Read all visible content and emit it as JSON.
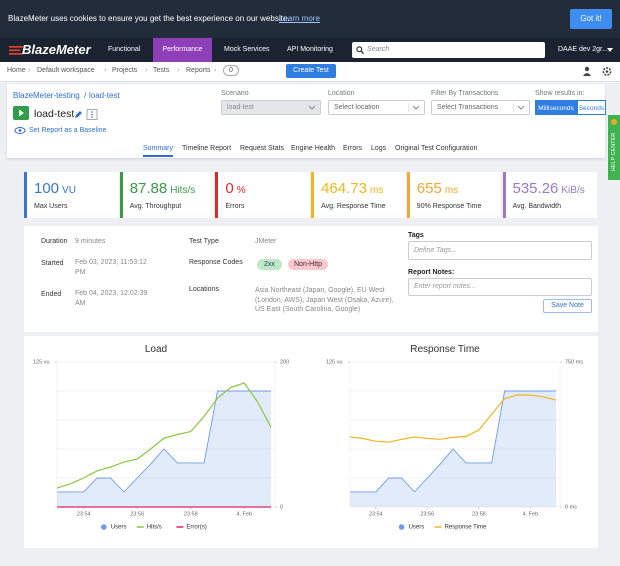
{
  "cookie_banner": {
    "text": "BlazeMeter uses cookies to ensure you get the best experience on our website.",
    "link": "Learn more",
    "button": "Got it!"
  },
  "navbar": {
    "logo": "BlazeMeter",
    "tabs": [
      "Functional",
      "Performance",
      "Mock Services",
      "API Monitoring"
    ],
    "active_tab": "Performance",
    "search_placeholder": "Search",
    "account": "DAAE dev 2gr..."
  },
  "breadcrumb": {
    "items": [
      "Home",
      "Default workspace",
      "Projects",
      "Tests",
      "Reports"
    ],
    "reports_count": 0,
    "create_button": "Create Test"
  },
  "report_header": {
    "project": "BlazeMeter-testing",
    "test": "load-test",
    "title": "load-test",
    "baseline": "Set Report as a Baseline",
    "scenario_label": "Scenario",
    "scenario_value": "load-test",
    "location_label": "Location",
    "location_placeholder": "Select location",
    "filter_label": "Filter By Transactions",
    "filter_placeholder": "Select Transactions",
    "results_label": "Show results in:",
    "results_options": [
      "Milliseconds",
      "Seconds"
    ],
    "results_active": "Milliseconds",
    "tabs": [
      "Summary",
      "Timeline Report",
      "Request Stats",
      "Engine Health",
      "Errors",
      "Logs",
      "Original Test Configuration"
    ],
    "active_tab": "Summary",
    "help": "HELP CENTER"
  },
  "stats": [
    {
      "value": 100,
      "unit": "VU",
      "label": "Max Users",
      "color": "#3a74d0"
    },
    {
      "value": 87.88,
      "unit": "Hits/s",
      "label": "Avg. Throughput",
      "color": "#3c9a4a"
    },
    {
      "value": 0,
      "unit": "%",
      "label": "Errors",
      "color": "#e02929"
    },
    {
      "value": 464.73,
      "unit": "ms",
      "label": "Avg. Response Time",
      "color": "#f2b51c"
    },
    {
      "value": 655,
      "unit": "ms",
      "label": "90% Response Time",
      "color": "#f0a832"
    },
    {
      "value": 535.26,
      "unit": "KiB/s",
      "label": "Avg. Bandwidth",
      "color": "#9b79c6"
    }
  ],
  "details": {
    "duration_label": "Duration",
    "duration": "9 minutes",
    "started_label": "Started",
    "started": "Feb 03, 2023, 11:53:12 PM",
    "ended_label": "Ended",
    "ended": "Feb 04, 2023, 12:02:39 AM",
    "test_type_label": "Test Type",
    "test_type": "JMeter",
    "response_codes_label": "Response Codes",
    "response_codes": [
      "2xx",
      "Non-Http"
    ],
    "locations_label": "Locations",
    "locations": "Asia Northeast (Japan, Google), EU West (London, AWS), Japan West (Osaka, Azure), US East (South Carolina, Google)",
    "tags_label": "Tags",
    "tags_placeholder": "Define Tags...",
    "notes_label": "Report Notes:",
    "notes_placeholder": "Enter report notes...",
    "save_button": "Save Note"
  },
  "chart_data": [
    {
      "type": "line",
      "title": "Load",
      "x": [
        0,
        0.5,
        1,
        1.5,
        2,
        2.5,
        3,
        3.5,
        4,
        4.5,
        5,
        5.5,
        6,
        6.5,
        7,
        7.5,
        8
      ],
      "xlim": [
        0,
        8.15
      ],
      "xticks": [
        {
          "value": 1,
          "label": "23:54"
        },
        {
          "value": 3,
          "label": "23:56"
        },
        {
          "value": 5,
          "label": "23:58"
        },
        {
          "value": 7,
          "label": "4. Feb"
        }
      ],
      "ylim": [
        0,
        125
      ],
      "yticks": [
        {
          "value": 125,
          "label": "125 vu"
        }
      ],
      "y2lim": [
        0,
        200
      ],
      "y2ticks": [
        0,
        200
      ],
      "series": [
        {
          "name": "Users",
          "color": "#6f9be8",
          "area": true,
          "values": [
            13,
            13,
            13,
            25,
            25,
            13,
            25,
            37,
            50,
            38,
            38,
            38,
            100,
            100,
            100,
            100,
            100
          ]
        },
        {
          "name": "Hits/s",
          "color": "#8cc63f",
          "axis": "y2",
          "values": [
            26,
            32,
            40,
            50,
            55,
            62,
            66,
            80,
            95,
            100,
            104,
            125,
            150,
            165,
            171,
            145,
            110
          ]
        },
        {
          "name": "Error(s)",
          "color": "#e0245e",
          "axis": "y2",
          "values": [
            0,
            0,
            0,
            0,
            0,
            0,
            0,
            0,
            0,
            0,
            0,
            0,
            0,
            0,
            0,
            0,
            0
          ]
        }
      ]
    },
    {
      "type": "line",
      "title": "Response Time",
      "x": [
        0,
        0.5,
        1,
        1.5,
        2,
        2.5,
        3,
        3.5,
        4,
        4.5,
        5,
        5.5,
        6,
        6.5,
        7,
        7.5,
        8
      ],
      "xlim": [
        0,
        8.15
      ],
      "xticks": [
        {
          "value": 1,
          "label": "23:54"
        },
        {
          "value": 3,
          "label": "23:56"
        },
        {
          "value": 5,
          "label": "23:58"
        },
        {
          "value": 7,
          "label": "4. Feb"
        }
      ],
      "ylim": [
        0,
        125
      ],
      "yticks": [
        {
          "value": 125,
          "label": "125 vu"
        }
      ],
      "y2lim": [
        0,
        750
      ],
      "y2ticks": [
        {
          "value": 0,
          "label": "0 ms"
        },
        {
          "value": 750,
          "label": "750 ms"
        }
      ],
      "series": [
        {
          "name": "Users",
          "color": "#6f9be8",
          "area": true,
          "values": [
            13,
            13,
            13,
            25,
            25,
            13,
            25,
            37,
            50,
            38,
            38,
            38,
            100,
            100,
            100,
            100,
            100
          ]
        },
        {
          "name": "Response Time",
          "color": "#f2b51c",
          "axis": "y2",
          "values": [
            362,
            355,
            340,
            335,
            350,
            362,
            355,
            350,
            360,
            365,
            398,
            480,
            560,
            580,
            579,
            570,
            553
          ]
        }
      ]
    }
  ]
}
